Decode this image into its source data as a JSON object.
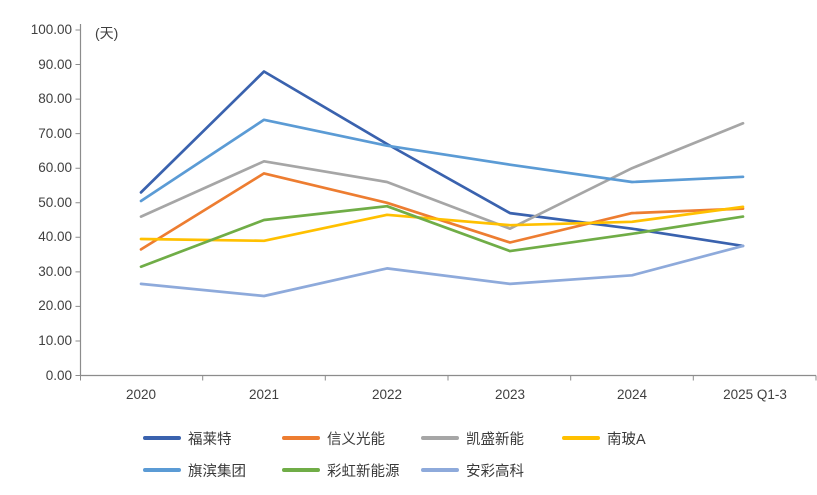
{
  "chart_data": {
    "type": "line",
    "title": "",
    "unit_label": "(天)",
    "categories": [
      "2020",
      "2021",
      "2022",
      "2023",
      "2024",
      "2025 Q1-3"
    ],
    "series": [
      {
        "name": "福莱特",
        "color": "#3A62AE",
        "values": [
          53.0,
          88.0,
          67.0,
          47.0,
          42.5,
          37.5
        ]
      },
      {
        "name": "信义光能",
        "color": "#ED7D31",
        "values": [
          36.5,
          58.5,
          50.0,
          38.5,
          47.0,
          48.3
        ]
      },
      {
        "name": "凯盛新能",
        "color": "#A6A6A6",
        "values": [
          46.0,
          62.0,
          56.0,
          42.5,
          60.0,
          73.0
        ]
      },
      {
        "name": "南玻A",
        "color": "#FFC000",
        "values": [
          39.5,
          39.0,
          46.5,
          43.5,
          44.5,
          48.8
        ]
      },
      {
        "name": "旗滨集团",
        "color": "#5B9BD5",
        "values": [
          50.5,
          74.0,
          66.5,
          61.0,
          56.0,
          57.5
        ]
      },
      {
        "name": "彩虹新能源",
        "color": "#70AD47",
        "values": [
          31.5,
          45.0,
          49.0,
          36.0,
          41.0,
          46.0
        ]
      },
      {
        "name": "安彩高科",
        "color": "#8EAADB",
        "values": [
          26.5,
          23.0,
          31.0,
          26.5,
          29.0,
          37.5
        ]
      }
    ],
    "ylim": [
      0,
      100
    ],
    "ytick_step": 10,
    "ytick_labels": [
      "0.00",
      "10.00",
      "20.00",
      "30.00",
      "40.00",
      "50.00",
      "60.00",
      "70.00",
      "80.00",
      "90.00",
      "100.00"
    ],
    "grid": false,
    "legend_position": "bottom"
  },
  "colors": {
    "axis": "#8C8C8C",
    "tick_text": "#404040",
    "legend_text": "#3A3A3A",
    "background": "#FFFFFF"
  }
}
